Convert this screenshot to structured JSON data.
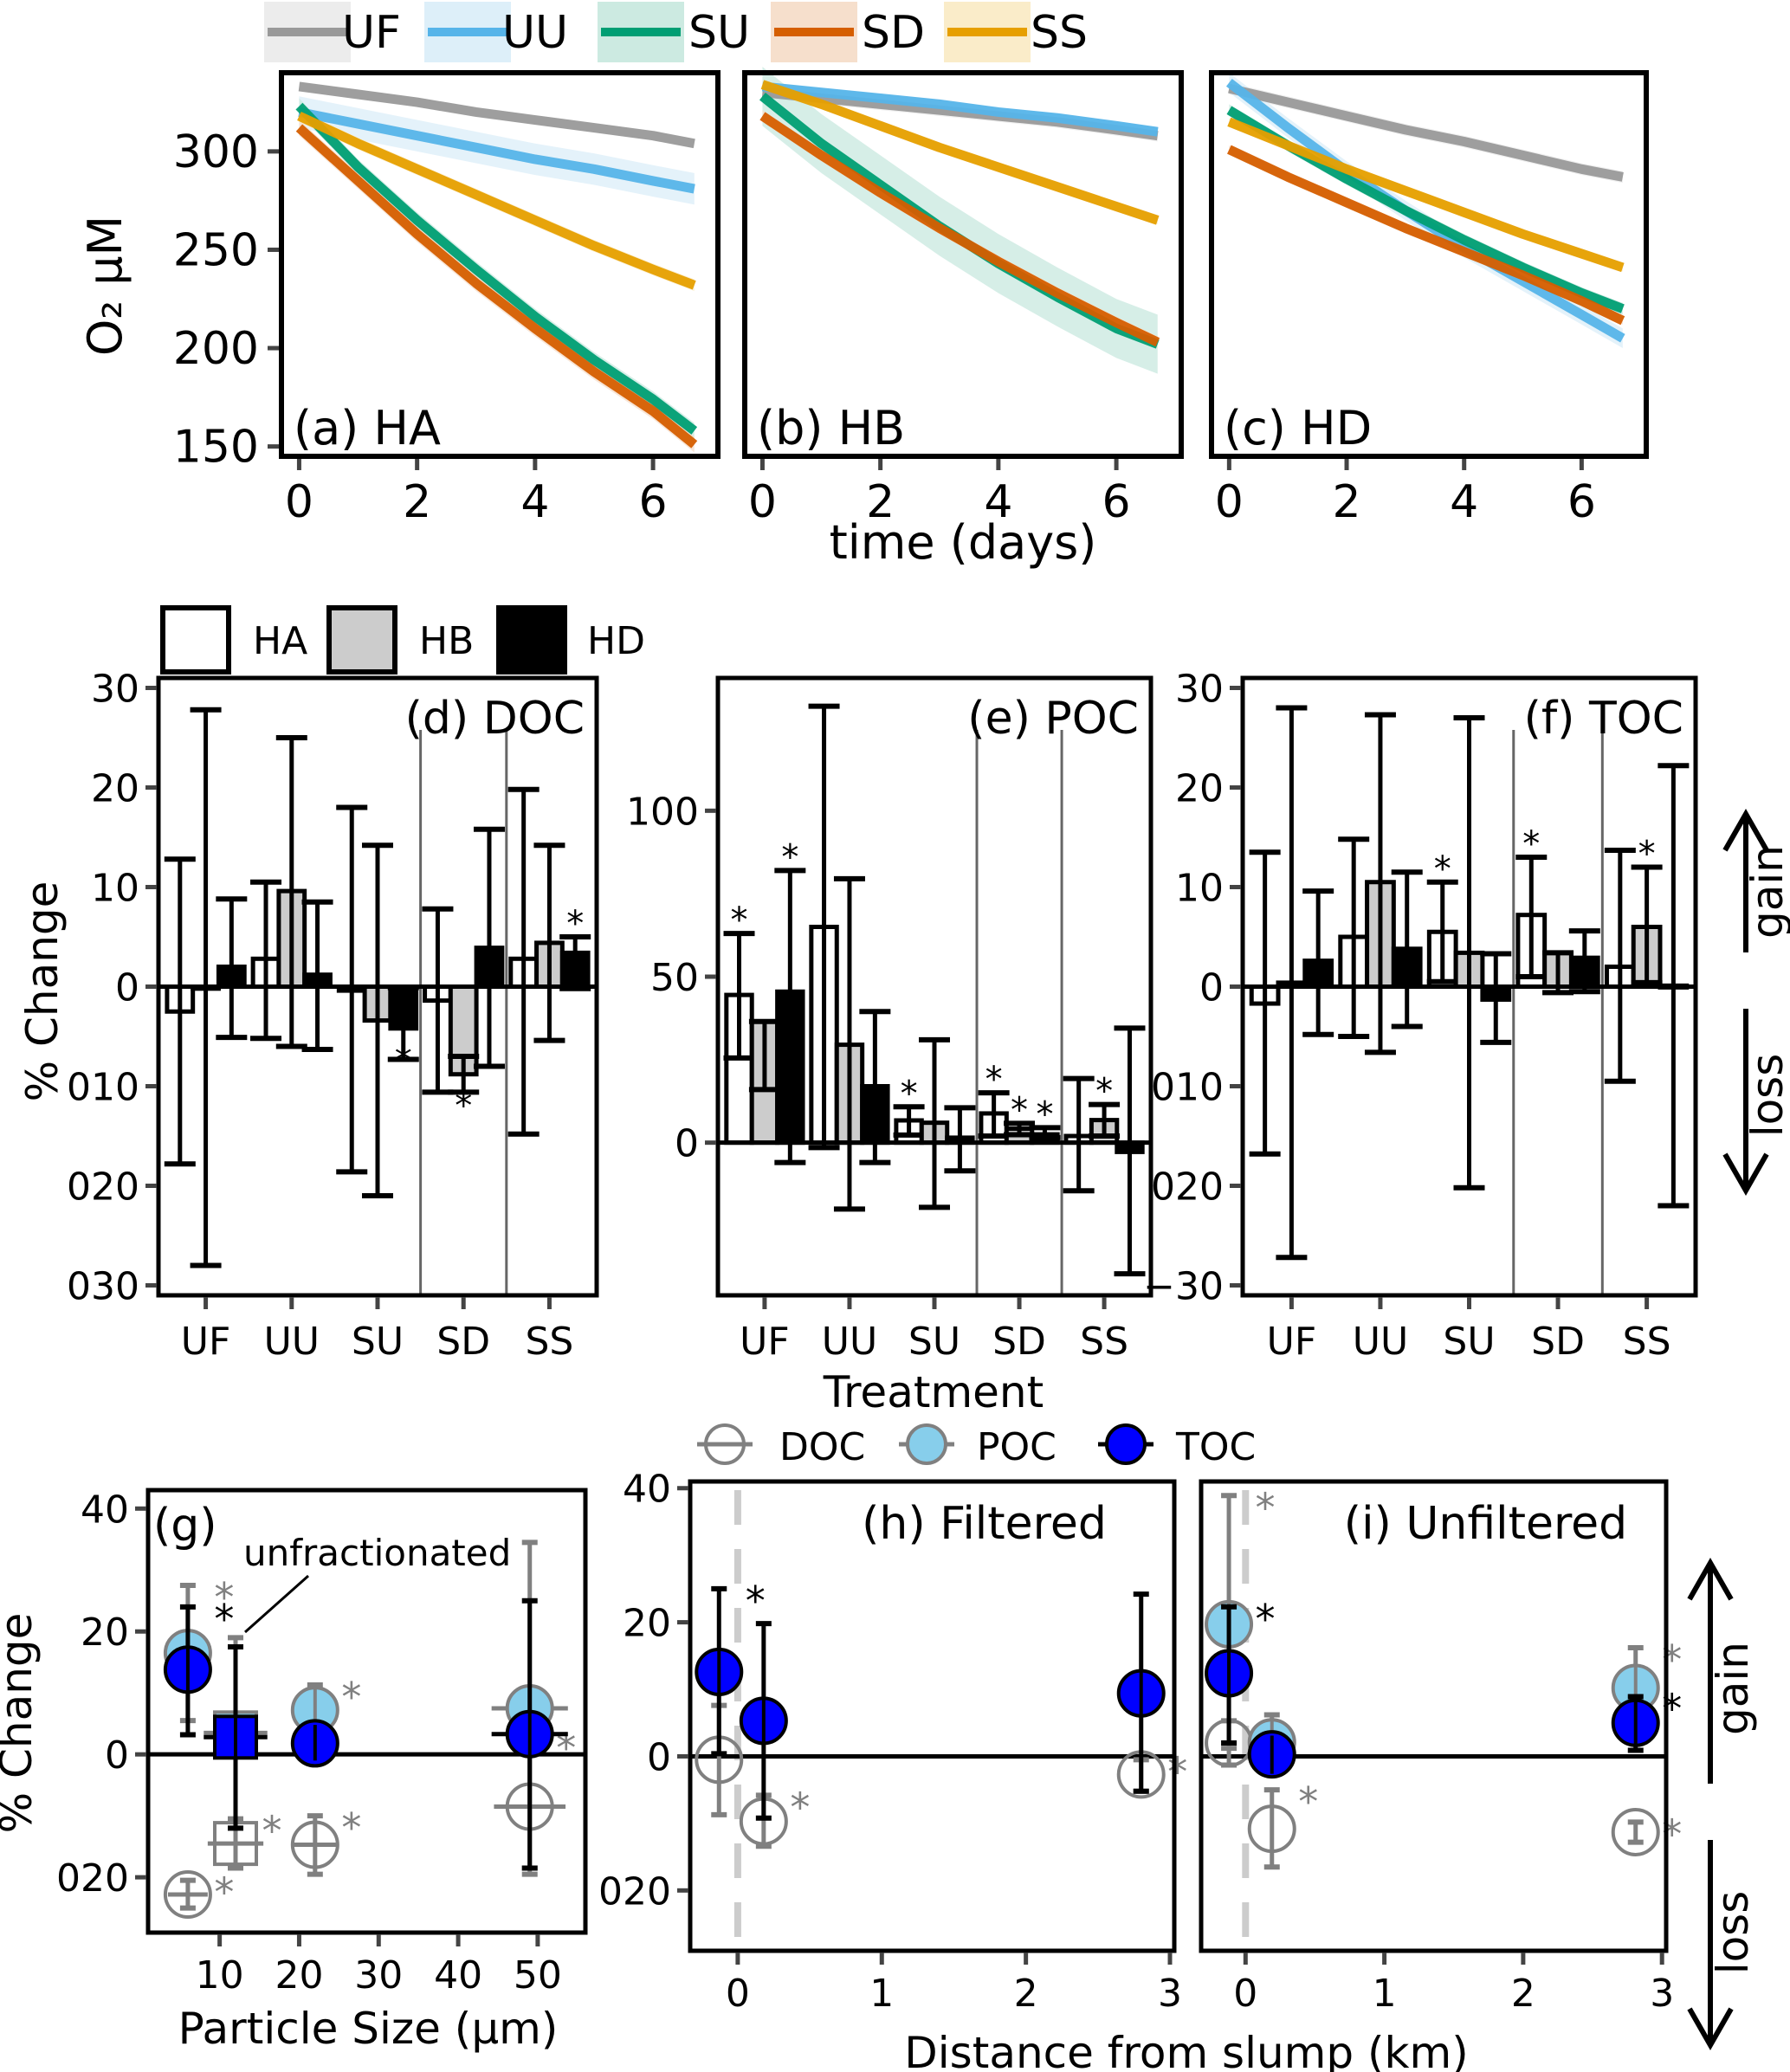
{
  "figure": {
    "top_legend": [
      {
        "key": "UF",
        "color": "#999999",
        "band": "#ececec"
      },
      {
        "key": "UU",
        "color": "#56b4e9",
        "band": "#ddeff9"
      },
      {
        "key": "SU",
        "color": "#009e73",
        "band": "#cceae1"
      },
      {
        "key": "SD",
        "color": "#d55e00",
        "band": "#f6dfcc"
      },
      {
        "key": "SS",
        "color": "#e69f00",
        "band": "#faecc9"
      }
    ],
    "bar_legend": [
      {
        "key": "HA",
        "fill": "#ffffff"
      },
      {
        "key": "HB",
        "fill": "#cccccc"
      },
      {
        "key": "HD",
        "fill": "#000000"
      }
    ],
    "point_legend": [
      {
        "key": "DOC",
        "fill": "none",
        "stroke": "#808080"
      },
      {
        "key": "POC",
        "fill": "#87ceeb",
        "stroke": "#808080"
      },
      {
        "key": "TOC",
        "fill": "#0000ff",
        "stroke": "#000000"
      }
    ],
    "o2_ylabel": "O₂ μM",
    "time_xlabel": "time (days)",
    "treatment_xlabel": "Treatment",
    "pct_ylabel": "% Change",
    "particle_xlabel": "Particle Size (μm)",
    "distance_xlabel": "Distance from slump (km)",
    "gain_label": "gain",
    "loss_label": "loss",
    "unfractionated_label": "unfractionated"
  },
  "chart_data": [
    {
      "id": "a",
      "type": "line",
      "title": "(a) HA",
      "xlabel": "time (days)",
      "ylabel": "O2 μM",
      "xlim": [
        -0.3,
        7.1
      ],
      "ylim": [
        145,
        340
      ],
      "xticks": [
        0,
        2,
        4,
        6
      ],
      "yticks": [
        150,
        200,
        250,
        300
      ],
      "x": [
        0,
        1,
        2,
        3,
        4,
        5,
        6,
        6.7
      ],
      "series": [
        {
          "name": "UF",
          "values": [
            333,
            329,
            325,
            320,
            316,
            312,
            308,
            304
          ],
          "ci": 2
        },
        {
          "name": "UU",
          "values": [
            320,
            314,
            308,
            302,
            296,
            291,
            285,
            281
          ],
          "ci": 8
        },
        {
          "name": "SU",
          "values": [
            323,
            292,
            265,
            240,
            216,
            194,
            174,
            158
          ],
          "ci": 4
        },
        {
          "name": "SD",
          "values": [
            312,
            285,
            258,
            233,
            210,
            188,
            168,
            151
          ],
          "ci": 4
        },
        {
          "name": "SS",
          "values": [
            318,
            304,
            291,
            278,
            265,
            252,
            240,
            232
          ],
          "ci": 3
        }
      ]
    },
    {
      "id": "b",
      "type": "line",
      "title": "(b) HB",
      "xlim": [
        -0.3,
        7.1
      ],
      "ylim": [
        145,
        340
      ],
      "xticks": [
        0,
        2,
        4,
        6
      ],
      "x": [
        0,
        1,
        2,
        3,
        4,
        5,
        6,
        6.7
      ],
      "series": [
        {
          "name": "UF",
          "values": [
            330,
            327,
            324,
            321,
            318,
            315,
            311,
            308
          ],
          "ci": 3
        },
        {
          "name": "UU",
          "values": [
            333,
            330,
            327,
            324,
            320,
            317,
            313,
            310
          ],
          "ci": 2
        },
        {
          "name": "SU",
          "values": [
            328,
            304,
            283,
            262,
            243,
            226,
            210,
            202
          ],
          "ci": 15
        },
        {
          "name": "SD",
          "values": [
            318,
            298,
            279,
            261,
            244,
            228,
            213,
            203
          ],
          "ci": 3
        },
        {
          "name": "SS",
          "values": [
            334,
            324,
            313,
            302,
            292,
            282,
            272,
            265
          ],
          "ci": 2
        }
      ]
    },
    {
      "id": "c",
      "type": "line",
      "title": "(c) HD",
      "xlim": [
        -0.3,
        7.1
      ],
      "ylim": [
        145,
        340
      ],
      "xticks": [
        0,
        2,
        4,
        6
      ],
      "x": [
        0,
        1,
        2,
        3,
        4,
        5,
        6,
        6.7
      ],
      "series": [
        {
          "name": "UF",
          "values": [
            332,
            325,
            318,
            311,
            305,
            298,
            291,
            287
          ],
          "ci": 3
        },
        {
          "name": "UU",
          "values": [
            335,
            312,
            290,
            270,
            251,
            234,
            217,
            205
          ],
          "ci": 5
        },
        {
          "name": "SU",
          "values": [
            321,
            303,
            286,
            270,
            255,
            241,
            228,
            220
          ],
          "ci": 3
        },
        {
          "name": "SD",
          "values": [
            301,
            287,
            274,
            261,
            249,
            237,
            224,
            214
          ],
          "ci": 2
        },
        {
          "name": "SS",
          "values": [
            315,
            303,
            291,
            280,
            269,
            258,
            248,
            241
          ],
          "ci": 2
        }
      ]
    },
    {
      "id": "d",
      "type": "bar",
      "title": "(d) DOC",
      "ylabel": "% Change",
      "ylim": [
        -31,
        31
      ],
      "yticks": [
        -30,
        -20,
        -10,
        0,
        10,
        20,
        30
      ],
      "ytick_labels": [
        "030",
        "020",
        "010",
        "0",
        "10",
        "20",
        "30"
      ],
      "categories": [
        "UF",
        "UU",
        "SU",
        "SD",
        "SS"
      ],
      "series": [
        {
          "name": "HA",
          "values": [
            -2.5,
            2.8,
            -0.4,
            -1.4,
            2.8
          ],
          "lo": [
            -17.8,
            -5.2,
            -18.6,
            -10.6,
            -14.8
          ],
          "hi": [
            12.8,
            10.5,
            18.0,
            7.8,
            19.8
          ],
          "sig": [
            false,
            false,
            false,
            false,
            false
          ]
        },
        {
          "name": "HB",
          "values": [
            -0.2,
            9.6,
            -3.4,
            -8.8,
            4.4
          ],
          "lo": [
            -28.0,
            -6.0,
            -21.0,
            -10.6,
            -5.4
          ],
          "hi": [
            27.8,
            25.0,
            14.2,
            -7.0,
            14.2
          ],
          "sig": [
            false,
            false,
            false,
            true,
            false
          ]
        },
        {
          "name": "HD",
          "values": [
            2.0,
            1.2,
            -4.2,
            3.9,
            3.4
          ],
          "lo": [
            -5.1,
            -6.3,
            -7.3,
            -8.0,
            -0.2
          ],
          "hi": [
            8.8,
            8.5,
            -0.1,
            15.8,
            5.0
          ],
          "sig": [
            false,
            false,
            true,
            false,
            true
          ]
        }
      ]
    },
    {
      "id": "e",
      "type": "bar",
      "title": "(e) POC",
      "ylim": [
        -46,
        140
      ],
      "yticks": [
        0,
        50,
        100
      ],
      "ytick_labels": [
        "0",
        "50",
        "100"
      ],
      "categories": [
        "UF",
        "UU",
        "SU",
        "SD",
        "SS"
      ],
      "series": [
        {
          "name": "HA",
          "values": [
            44.5,
            65.0,
            6.7,
            8.8,
            2.0
          ],
          "lo": [
            25.5,
            -1.5,
            2.3,
            2.0,
            -14.5
          ],
          "hi": [
            63.0,
            131.5,
            10.8,
            15.0,
            19.3
          ],
          "sig": [
            true,
            false,
            true,
            true,
            false
          ]
        },
        {
          "name": "HB",
          "values": [
            36.5,
            29.5,
            6.0,
            4.2,
            6.8
          ],
          "lo": [
            16.0,
            -20.0,
            -19.5,
            2.4,
            2.0
          ],
          "hi": [
            36.5,
            79.5,
            31.0,
            5.8,
            11.5
          ],
          "sig": [
            false,
            false,
            false,
            true,
            true
          ]
        },
        {
          "name": "HD",
          "values": [
            45.5,
            17.0,
            1.5,
            2.5,
            -2.8
          ],
          "lo": [
            -6.0,
            -6.0,
            -8.5,
            1.5,
            -39.5
          ],
          "hi": [
            82.0,
            39.5,
            10.5,
            4.5,
            34.5
          ],
          "sig": [
            true,
            false,
            false,
            true,
            false
          ]
        }
      ]
    },
    {
      "id": "f",
      "type": "bar",
      "title": "(f) TOC",
      "ylim": [
        -31,
        31
      ],
      "yticks": [
        -30,
        -20,
        -10,
        0,
        10,
        20,
        30
      ],
      "ytick_labels": [
        "−30",
        "020",
        "010",
        "0",
        "10",
        "20",
        "30"
      ],
      "categories": [
        "UF",
        "UU",
        "SU",
        "SD",
        "SS"
      ],
      "series": [
        {
          "name": "HA",
          "values": [
            -1.7,
            5.0,
            5.5,
            7.2,
            2.0
          ],
          "lo": [
            -16.8,
            -5.0,
            0.5,
            1.0,
            -9.5
          ],
          "hi": [
            13.5,
            14.8,
            10.5,
            13.0,
            13.7
          ],
          "sig": [
            false,
            false,
            true,
            true,
            false
          ]
        },
        {
          "name": "HB",
          "values": [
            0.4,
            10.5,
            3.4,
            3.4,
            6.0
          ],
          "lo": [
            -27.2,
            -6.6,
            -20.2,
            -0.6,
            0.4
          ],
          "hi": [
            28.0,
            27.3,
            27.0,
            3.4,
            12.0
          ],
          "sig": [
            false,
            false,
            false,
            false,
            true
          ]
        },
        {
          "name": "HD",
          "values": [
            2.6,
            3.8,
            -1.3,
            2.9,
            0.1
          ],
          "lo": [
            -4.8,
            -4.0,
            -5.6,
            -0.5,
            -22.0
          ],
          "hi": [
            9.6,
            11.5,
            3.3,
            5.6,
            22.2
          ],
          "sig": [
            false,
            false,
            false,
            false,
            false
          ]
        }
      ]
    },
    {
      "id": "g",
      "type": "scatter",
      "title": "(g)",
      "xlabel": "Particle Size (μm)",
      "ylabel": "% Change",
      "xlim": [
        1,
        56
      ],
      "ylim": [
        -29,
        43
      ],
      "xticks": [
        10,
        20,
        30,
        40,
        50
      ],
      "yticks": [
        -20,
        0,
        20,
        40
      ],
      "ytick_labels": [
        "020",
        "0",
        "20",
        "40"
      ],
      "annotation": "unfractionated",
      "series": [
        {
          "name": "DOC",
          "points": [
            {
              "x": 6,
              "y": -22.8,
              "xerr": 2.5,
              "ylo": -25.0,
              "yhi": -20.5,
              "sig": true,
              "shape": "circle"
            },
            {
              "x": 12,
              "y": -14.5,
              "xerr": 3.5,
              "ylo": -18.5,
              "yhi": -10.5,
              "sig": true,
              "shape": "square"
            },
            {
              "x": 22,
              "y": -14.7,
              "xerr": 3,
              "ylo": -19.5,
              "yhi": -10.0,
              "sig": true,
              "shape": "circle"
            },
            {
              "x": 49,
              "y": -8.5,
              "xerr": 4.5,
              "ylo": -19.5,
              "yhi": 3.0,
              "sig": true,
              "shape": "circle"
            }
          ]
        },
        {
          "name": "POC",
          "points": [
            {
              "x": 6,
              "y": 16.5,
              "xerr": 3,
              "ylo": 5.5,
              "yhi": 27.5,
              "sig": true,
              "shape": "circle"
            },
            {
              "x": 12,
              "y": 3.5,
              "xerr": 4,
              "ylo": -10.5,
              "yhi": 19.0,
              "sig": false,
              "shape": "square"
            },
            {
              "x": 22,
              "y": 7.2,
              "xerr": 3,
              "ylo": 3.0,
              "yhi": 11.3,
              "sig": true,
              "shape": "circle"
            },
            {
              "x": 49,
              "y": 7.5,
              "xerr": 4.8,
              "ylo": -18.5,
              "yhi": 34.5,
              "sig": false,
              "shape": "circle"
            }
          ]
        },
        {
          "name": "TOC",
          "points": [
            {
              "x": 6,
              "y": 13.8,
              "xerr": 3,
              "ylo": 3.2,
              "yhi": 24.0,
              "sig": true,
              "shape": "circle"
            },
            {
              "x": 12,
              "y": 2.8,
              "xerr": 4,
              "ylo": -12.0,
              "yhi": 17.5,
              "sig": false,
              "shape": "square"
            },
            {
              "x": 22,
              "y": 1.8,
              "xerr": 3,
              "ylo": -1.0,
              "yhi": 4.8,
              "sig": false,
              "shape": "circle"
            },
            {
              "x": 49,
              "y": 3.3,
              "xerr": 4.8,
              "ylo": -18.5,
              "yhi": 25.0,
              "sig": false,
              "shape": "circle"
            }
          ]
        }
      ]
    },
    {
      "id": "h",
      "type": "scatter",
      "title": "(h) Filtered",
      "xlim": [
        -0.33,
        3.03
      ],
      "ylim": [
        -29,
        41
      ],
      "xticks": [
        0,
        1,
        2,
        3
      ],
      "yticks": [
        -20,
        0,
        20,
        40
      ],
      "ytick_labels": [
        "020",
        "0",
        "20",
        "40"
      ],
      "vline": 0,
      "series": [
        {
          "name": "DOC",
          "points": [
            {
              "x": -0.13,
              "y": -0.5,
              "ylo": -8.7,
              "yhi": 7.6,
              "sig": false
            },
            {
              "x": 0.18,
              "y": -9.7,
              "ylo": -13.4,
              "yhi": -5.8,
              "sig": true
            },
            {
              "x": 2.8,
              "y": -2.7,
              "ylo": -5.2,
              "yhi": -0.5,
              "sig": true
            }
          ]
        },
        {
          "name": "TOC",
          "points": [
            {
              "x": -0.13,
              "y": 12.6,
              "ylo": 0.4,
              "yhi": 25.0,
              "sig": true
            },
            {
              "x": 0.18,
              "y": 5.3,
              "ylo": -9.2,
              "yhi": 19.8,
              "sig": false
            },
            {
              "x": 2.8,
              "y": 9.4,
              "ylo": -5.2,
              "yhi": 24.2,
              "sig": false
            }
          ]
        }
      ]
    },
    {
      "id": "i",
      "type": "scatter",
      "title": "(i) Unfiltered",
      "xlim": [
        -0.32,
        3.03
      ],
      "ylim": [
        -29,
        41
      ],
      "xticks": [
        0,
        1,
        2,
        3
      ],
      "vline": 0,
      "series": [
        {
          "name": "DOC",
          "points": [
            {
              "x": -0.12,
              "y": 2.0,
              "ylo": -1.3,
              "yhi": 5.3,
              "sig": false
            },
            {
              "x": 0.19,
              "y": -10.8,
              "ylo": -16.5,
              "yhi": -5.0,
              "sig": true
            },
            {
              "x": 2.81,
              "y": -11.3,
              "ylo": -12.8,
              "yhi": -9.8,
              "sig": true
            }
          ]
        },
        {
          "name": "POC",
          "points": [
            {
              "x": -0.12,
              "y": 19.7,
              "ylo": 1.2,
              "yhi": 38.9,
              "sig": true
            },
            {
              "x": 0.19,
              "y": 2.1,
              "ylo": -1.8,
              "yhi": 6.2,
              "sig": false
            },
            {
              "x": 2.81,
              "y": 10.2,
              "ylo": 3.7,
              "yhi": 16.2,
              "sig": true
            }
          ]
        },
        {
          "name": "TOC",
          "points": [
            {
              "x": -0.12,
              "y": 12.4,
              "ylo": 2.0,
              "yhi": 22.3,
              "sig": true
            },
            {
              "x": 0.19,
              "y": 0.3,
              "ylo": -2.6,
              "yhi": 3.1,
              "sig": false
            },
            {
              "x": 2.81,
              "y": 5.0,
              "ylo": 0.9,
              "yhi": 8.9,
              "sig": true
            }
          ]
        }
      ]
    }
  ]
}
